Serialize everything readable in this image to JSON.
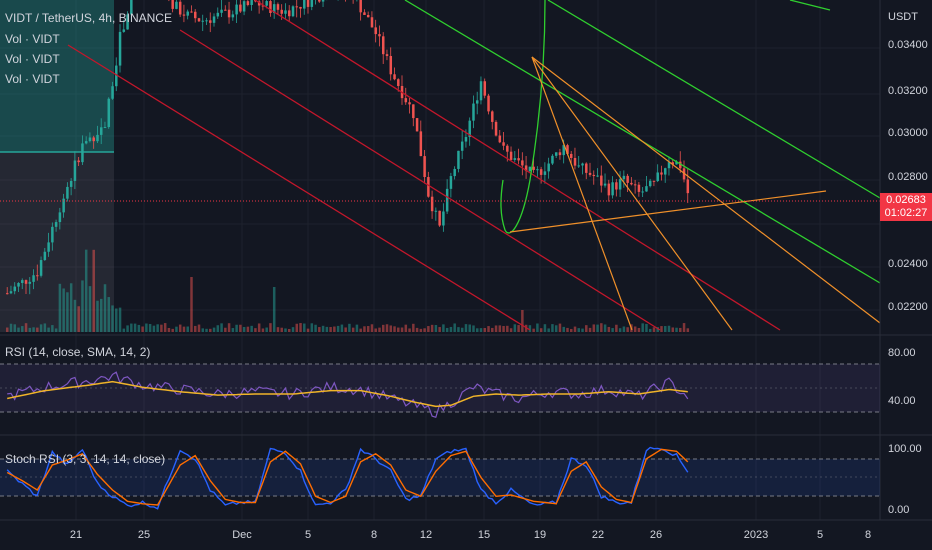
{
  "header": {
    "symbol": "VIDT / TetherUS, 4h, BINANCE",
    "volume_labels": [
      "Vol · VIDT",
      "Vol · VIDT",
      "Vol · VIDT"
    ]
  },
  "price_axis": {
    "unit": "USDT",
    "ticks": [
      "0.03400",
      "0.03200",
      "0.03000",
      "0.02800",
      "0.02400",
      "0.02200"
    ]
  },
  "last_price": {
    "value": "0.02683",
    "countdown": "01:02:27"
  },
  "rsi_panel": {
    "label": "RSI (14, close, SMA, 14, 2)",
    "ticks": [
      "80.00",
      "40.00"
    ]
  },
  "stoch_panel": {
    "label": "Stoch RSI (3, 3, 14, 14, close)",
    "ticks": [
      "100.00",
      "0.00"
    ]
  },
  "time_axis": {
    "ticks": [
      "21",
      "25",
      "Dec",
      "5",
      "8",
      "12",
      "15",
      "19",
      "22",
      "26",
      "2023",
      "5",
      "8"
    ]
  },
  "colors": {
    "background": "#131722",
    "up": "#26a69a",
    "down": "#ef5350",
    "red_channel": "#c2172b",
    "green_channel": "#2fcf2f",
    "orange_lines": "#f0902a",
    "rsi_line": "#7e57c2",
    "rsi_ma": "#f0b429",
    "stoch_k": "#2962ff",
    "stoch_d": "#ff6d00",
    "last_price": "#f23645"
  },
  "chart_data": {
    "type": "candlestick",
    "price_ylim": [
      0.0205,
      0.0355
    ],
    "price_path": [
      [
        0,
        0.0222
      ],
      [
        8,
        0.0232
      ],
      [
        14,
        0.0262
      ],
      [
        20,
        0.029
      ],
      [
        26,
        0.03
      ],
      [
        30,
        0.034
      ],
      [
        34,
        0.0365
      ],
      [
        40,
        0.0372
      ],
      [
        44,
        0.0355
      ],
      [
        48,
        0.035
      ],
      [
        52,
        0.0348
      ],
      [
        60,
        0.0352
      ],
      [
        66,
        0.0356
      ],
      [
        74,
        0.0352
      ],
      [
        86,
        0.0362
      ],
      [
        92,
        0.036
      ],
      [
        98,
        0.0342
      ],
      [
        102,
        0.0325
      ],
      [
        108,
        0.0305
      ],
      [
        112,
        0.0268
      ],
      [
        115,
        0.0252
      ],
      [
        118,
        0.0275
      ],
      [
        122,
        0.0295
      ],
      [
        126,
        0.032
      ],
      [
        129,
        0.0302
      ],
      [
        132,
        0.0288
      ],
      [
        136,
        0.0282
      ],
      [
        140,
        0.0276
      ],
      [
        144,
        0.0282
      ],
      [
        148,
        0.029
      ],
      [
        152,
        0.028
      ],
      [
        156,
        0.0276
      ],
      [
        160,
        0.027
      ],
      [
        164,
        0.0274
      ],
      [
        168,
        0.0268
      ],
      [
        172,
        0.0272
      ],
      [
        176,
        0.0284
      ],
      [
        179,
        0.0281
      ],
      [
        181,
        0.02683
      ]
    ],
    "rsi_ylim": [
      20,
      100
    ],
    "rsi_path": [
      [
        0,
        50
      ],
      [
        10,
        58
      ],
      [
        22,
        64
      ],
      [
        28,
        68
      ],
      [
        36,
        60
      ],
      [
        46,
        56
      ],
      [
        56,
        52
      ],
      [
        66,
        54
      ],
      [
        76,
        52
      ],
      [
        86,
        58
      ],
      [
        94,
        56
      ],
      [
        102,
        48
      ],
      [
        108,
        42
      ],
      [
        114,
        36
      ],
      [
        118,
        44
      ],
      [
        124,
        58
      ],
      [
        130,
        52
      ],
      [
        136,
        48
      ],
      [
        144,
        54
      ],
      [
        152,
        52
      ],
      [
        160,
        56
      ],
      [
        168,
        50
      ],
      [
        176,
        62
      ],
      [
        181,
        50
      ]
    ],
    "rsi_ma_path": [
      [
        0,
        48
      ],
      [
        10,
        55
      ],
      [
        22,
        60
      ],
      [
        28,
        63
      ],
      [
        36,
        58
      ],
      [
        46,
        54
      ],
      [
        56,
        51
      ],
      [
        66,
        52
      ],
      [
        76,
        52
      ],
      [
        86,
        55
      ],
      [
        94,
        55
      ],
      [
        102,
        50
      ],
      [
        108,
        45
      ],
      [
        114,
        41
      ],
      [
        118,
        42
      ],
      [
        124,
        50
      ],
      [
        130,
        52
      ],
      [
        136,
        51
      ],
      [
        144,
        52
      ],
      [
        152,
        52
      ],
      [
        160,
        54
      ],
      [
        168,
        52
      ],
      [
        176,
        56
      ],
      [
        181,
        54
      ]
    ],
    "stoch_ylim": [
      -10,
      110
    ],
    "stoch_k_path": [
      [
        0,
        60
      ],
      [
        4,
        40
      ],
      [
        8,
        20
      ],
      [
        12,
        90
      ],
      [
        16,
        70
      ],
      [
        20,
        95
      ],
      [
        24,
        40
      ],
      [
        28,
        20
      ],
      [
        32,
        5
      ],
      [
        36,
        10
      ],
      [
        40,
        2
      ],
      [
        46,
        95
      ],
      [
        50,
        80
      ],
      [
        54,
        30
      ],
      [
        58,
        5
      ],
      [
        62,
        10
      ],
      [
        66,
        10
      ],
      [
        70,
        95
      ],
      [
        74,
        90
      ],
      [
        78,
        60
      ],
      [
        82,
        5
      ],
      [
        86,
        10
      ],
      [
        90,
        30
      ],
      [
        94,
        95
      ],
      [
        98,
        80
      ],
      [
        102,
        60
      ],
      [
        106,
        15
      ],
      [
        110,
        20
      ],
      [
        114,
        80
      ],
      [
        118,
        92
      ],
      [
        122,
        95
      ],
      [
        126,
        30
      ],
      [
        130,
        10
      ],
      [
        134,
        30
      ],
      [
        140,
        5
      ],
      [
        146,
        10
      ],
      [
        150,
        80
      ],
      [
        154,
        70
      ],
      [
        158,
        20
      ],
      [
        162,
        10
      ],
      [
        166,
        10
      ],
      [
        170,
        95
      ],
      [
        174,
        98
      ],
      [
        178,
        85
      ],
      [
        181,
        60
      ]
    ],
    "stoch_d_path": [
      [
        0,
        58
      ],
      [
        4,
        45
      ],
      [
        8,
        30
      ],
      [
        12,
        70
      ],
      [
        16,
        78
      ],
      [
        20,
        88
      ],
      [
        24,
        55
      ],
      [
        28,
        30
      ],
      [
        32,
        12
      ],
      [
        36,
        8
      ],
      [
        40,
        6
      ],
      [
        46,
        70
      ],
      [
        50,
        85
      ],
      [
        54,
        45
      ],
      [
        58,
        15
      ],
      [
        62,
        10
      ],
      [
        66,
        10
      ],
      [
        70,
        75
      ],
      [
        74,
        92
      ],
      [
        78,
        72
      ],
      [
        82,
        20
      ],
      [
        86,
        10
      ],
      [
        90,
        20
      ],
      [
        94,
        75
      ],
      [
        98,
        88
      ],
      [
        102,
        70
      ],
      [
        106,
        30
      ],
      [
        110,
        20
      ],
      [
        114,
        60
      ],
      [
        118,
        85
      ],
      [
        122,
        92
      ],
      [
        126,
        50
      ],
      [
        130,
        20
      ],
      [
        134,
        22
      ],
      [
        140,
        12
      ],
      [
        146,
        8
      ],
      [
        150,
        60
      ],
      [
        154,
        75
      ],
      [
        158,
        35
      ],
      [
        162,
        15
      ],
      [
        166,
        10
      ],
      [
        170,
        80
      ],
      [
        174,
        95
      ],
      [
        178,
        92
      ],
      [
        181,
        75
      ]
    ]
  }
}
